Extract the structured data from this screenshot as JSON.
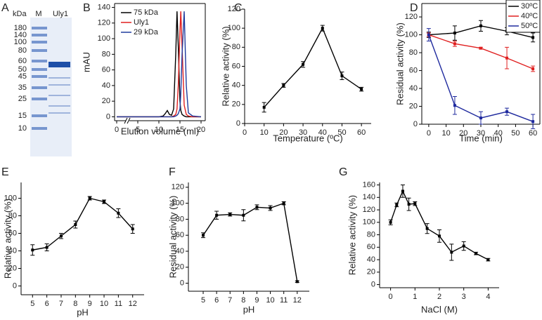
{
  "gel": {
    "panel": "A",
    "unit": "kDa",
    "lanes": [
      "M",
      "Uly1"
    ],
    "markers": [
      180,
      140,
      100,
      80,
      60,
      50,
      45,
      35,
      25,
      15,
      10
    ]
  },
  "chart_data": [
    {
      "type": "line",
      "panel": "B",
      "markers": false,
      "ylabel": "mAU",
      "xlabel": "Elution volume (ml)",
      "x": [
        0,
        4,
        8,
        10,
        11,
        11.5,
        12,
        12.5,
        13,
        13.5,
        14,
        14.3,
        14.6,
        15,
        15.2,
        15.5,
        16,
        16.5,
        17,
        18,
        20
      ],
      "series": [
        {
          "name": "75 kDa",
          "color": "#000000",
          "values": [
            0,
            0,
            0,
            0,
            1,
            4,
            8,
            3,
            2,
            10,
            80,
            135,
            90,
            20,
            8,
            3,
            1,
            0,
            0,
            0,
            0
          ]
        },
        {
          "name": "Uly1",
          "color": "#e02020",
          "values": [
            0,
            0,
            0,
            0,
            0,
            0,
            0,
            0,
            0,
            1,
            3,
            10,
            40,
            110,
            135,
            90,
            15,
            3,
            1,
            0,
            0
          ]
        },
        {
          "name": "29 kDa",
          "color": "#1f3c9e",
          "values": [
            0,
            0,
            0,
            0,
            0,
            0,
            0,
            0,
            0,
            0,
            1,
            2,
            4,
            10,
            30,
            80,
            135,
            40,
            5,
            1,
            0
          ]
        }
      ],
      "xlim": [
        -0.5,
        21
      ],
      "xticks": [
        0,
        5,
        10,
        15,
        20
      ],
      "ylim": [
        -5,
        145
      ],
      "yticks": [
        0,
        20,
        40,
        60,
        80,
        100,
        120,
        140
      ],
      "legend": "top-left"
    },
    {
      "type": "line",
      "panel": "C",
      "markers": true,
      "ylabel": "Relative activity (%)",
      "xlabel": "Temperature (ºC)",
      "x": [
        10,
        20,
        30,
        40,
        50,
        60
      ],
      "series": [
        {
          "color": "#000000",
          "values": [
            17,
            40,
            62,
            100,
            50,
            36
          ],
          "errors": [
            5,
            2,
            3,
            3,
            4,
            2
          ]
        }
      ],
      "xlim": [
        0,
        65
      ],
      "xticks": [
        0,
        10,
        20,
        30,
        40,
        50,
        60
      ],
      "ylim": [
        0,
        120
      ],
      "yticks": [
        0,
        20,
        40,
        60,
        80,
        100,
        120
      ]
    },
    {
      "type": "line",
      "panel": "D",
      "markers": true,
      "ylabel": "Residual activity (%)",
      "xlabel": "Time (min)",
      "x": [
        0,
        15,
        30,
        45,
        60
      ],
      "series": [
        {
          "name": "30ºC",
          "color": "#000000",
          "values": [
            100,
            102,
            110,
            104,
            97
          ],
          "errors": [
            3,
            8,
            6,
            4,
            5
          ]
        },
        {
          "name": "40ºC",
          "color": "#e02020",
          "values": [
            100,
            90,
            85,
            74,
            62
          ],
          "errors": [
            2,
            3,
            1,
            12,
            3
          ]
        },
        {
          "name": "50ºC",
          "color": "#1f2a9e",
          "values": [
            100,
            21,
            7,
            14,
            3
          ],
          "errors": [
            7,
            10,
            7,
            4,
            8
          ]
        }
      ],
      "xlim": [
        -4,
        64
      ],
      "xticks": [
        0,
        10,
        20,
        30,
        40,
        50,
        60
      ],
      "ylim": [
        0,
        135
      ],
      "yticks": [
        0,
        20,
        40,
        60,
        80,
        100,
        120
      ],
      "legend": "top-right"
    },
    {
      "type": "line",
      "panel": "E",
      "markers": true,
      "ylabel": "Relative activity (%)",
      "xlabel": "pH",
      "x": [
        5,
        6,
        7,
        8,
        9,
        10,
        11,
        12
      ],
      "series": [
        {
          "color": "#000000",
          "values": [
            41,
            44,
            57,
            70,
            100,
            96,
            83,
            65
          ],
          "errors": [
            6,
            4,
            3,
            4,
            2,
            2,
            5,
            5
          ]
        }
      ],
      "xlim": [
        4.2,
        12.8
      ],
      "xticks": [
        5,
        6,
        7,
        8,
        9,
        10,
        11,
        12
      ],
      "ylim": [
        -10,
        118
      ],
      "yticks": [
        0,
        20,
        40,
        60,
        80,
        100
      ]
    },
    {
      "type": "line",
      "panel": "F",
      "markers": true,
      "ylabel": "Residual activity (%)",
      "xlabel": "pH",
      "x": [
        5,
        6,
        7,
        8,
        9,
        10,
        11,
        12
      ],
      "series": [
        {
          "color": "#000000",
          "values": [
            60,
            85,
            86,
            85,
            95,
            94,
            100,
            2
          ],
          "errors": [
            3,
            5,
            2,
            7,
            3,
            3,
            2,
            1
          ]
        }
      ],
      "xlim": [
        3.9,
        12.9
      ],
      "xticks": [
        5,
        6,
        7,
        8,
        9,
        10,
        11,
        12
      ],
      "ylim": [
        -10,
        126
      ],
      "yticks": [
        0,
        20,
        40,
        60,
        80,
        100,
        120
      ]
    },
    {
      "type": "line",
      "panel": "G",
      "markers": true,
      "ylabel": "Relative activity (%)",
      "xlabel": "NaCl (M)",
      "x": [
        0,
        0.25,
        0.5,
        0.75,
        1,
        1.5,
        2,
        2.5,
        3,
        3.5,
        4
      ],
      "series": [
        {
          "color": "#000000",
          "values": [
            100,
            128,
            150,
            129,
            130,
            90,
            78,
            52,
            62,
            50,
            40
          ],
          "errors": [
            4,
            3,
            10,
            10,
            3,
            8,
            10,
            13,
            7,
            2,
            2
          ]
        }
      ],
      "xlim": [
        -0.45,
        4.45
      ],
      "xticks": [
        0,
        1,
        2,
        3,
        4
      ],
      "ylim": [
        -5,
        164
      ],
      "yticks": [
        0,
        20,
        40,
        60,
        80,
        100,
        120,
        140,
        160
      ]
    }
  ]
}
